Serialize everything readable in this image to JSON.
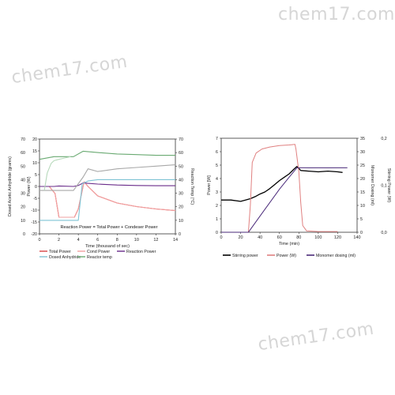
{
  "watermark": {
    "top_right": "chem17.com",
    "middle_left": "chem17.com",
    "lower_right": "chem17.com"
  },
  "chart_data": [
    {
      "type": "line",
      "xlabel": "Time (thousand of sec)",
      "x_ticks": [
        0,
        2,
        4,
        6,
        8,
        10,
        12,
        14
      ],
      "xlim": [
        0,
        14
      ],
      "left_outer_axis": {
        "label": "Dosed Acetic Anhydride (grams)",
        "ticks": [
          0,
          10,
          20,
          30,
          40,
          50,
          60,
          70
        ],
        "ylim": [
          0,
          70
        ]
      },
      "left_inner_axis": {
        "label": "Power (W)",
        "ticks": [
          -20,
          -15,
          -10,
          -5,
          0,
          5,
          10,
          15,
          20
        ],
        "ylim": [
          -20,
          20
        ]
      },
      "right_axis": {
        "label": "Reaction Temp (°C)",
        "ticks": [
          0,
          10,
          20,
          30,
          40,
          50,
          60,
          70
        ],
        "ylim": [
          0,
          70
        ]
      },
      "annotation": "Reaction Power = Total Power + Condeser Power",
      "legend_position": "bottom",
      "series": [
        {
          "name": "Total Power",
          "axis": "power",
          "color": "#d64545",
          "x": [
            0,
            1.0,
            1.6,
            2.0,
            3.6,
            4.0,
            4.6,
            5.0,
            6.0,
            8.0,
            10.0,
            12.0,
            14.0
          ],
          "y": [
            0,
            0,
            -3,
            -13,
            -13,
            -9.5,
            2,
            0,
            -4,
            -7,
            -8.5,
            -9.5,
            -10.2
          ]
        },
        {
          "name": "Cond Power",
          "axis": "power",
          "color": "#f2a0a0",
          "x": [
            0,
            1.0,
            1.6,
            2.0,
            3.6,
            4.0,
            4.6,
            5.0,
            6.0,
            8.0,
            10.0,
            12.0,
            14.0
          ],
          "y": [
            0,
            0,
            -3,
            -13,
            -13,
            -9.5,
            2,
            0,
            -4,
            -7,
            -8.5,
            -9.5,
            -10.2
          ]
        },
        {
          "name": "Reaction Power",
          "axis": "power",
          "color": "#6a2c8a",
          "x": [
            0,
            1.5,
            2.0,
            3.5,
            4.0,
            4.5,
            5.0,
            6.0,
            8.0,
            10.0,
            12.0,
            14.0
          ],
          "y": [
            0,
            0,
            0.2,
            0,
            0.4,
            1.5,
            1.3,
            1.0,
            0.6,
            0.4,
            0.3,
            0.3
          ]
        },
        {
          "name": "Dosed Anhydride",
          "axis": "dosed",
          "color": "#7fc3d4",
          "x": [
            0,
            4.0,
            4.4,
            5.0,
            6.0,
            14.0
          ],
          "y": [
            10,
            10,
            37,
            39,
            40,
            40
          ]
        },
        {
          "name": "Reactor temp",
          "axis": "temp",
          "color": "#6aaa72",
          "x": [
            0,
            1.5,
            3.5,
            4.5,
            6.0,
            8.0,
            10.0,
            12.0,
            14.0
          ],
          "y": [
            55,
            57,
            57,
            61,
            60,
            59,
            58.5,
            58,
            58
          ]
        },
        {
          "name": "",
          "axis": "temp",
          "color": "#a8a8a8",
          "x": [
            0,
            3.5,
            4.5,
            5.0,
            6.0,
            8.0,
            10.0,
            12.0,
            14.0
          ],
          "y": [
            32,
            32,
            42,
            48,
            46,
            48,
            49,
            50,
            51
          ]
        },
        {
          "name": "",
          "axis": "temp",
          "color": "#b7d9bb",
          "x": [
            0.5,
            0.8,
            1.2,
            1.5,
            2.0,
            2.6,
            3.2
          ],
          "y": [
            32,
            45,
            52,
            54,
            55,
            56,
            57
          ]
        }
      ]
    },
    {
      "type": "line",
      "xlabel": "Time (min)",
      "x_ticks": [
        0,
        20,
        40,
        60,
        80,
        100,
        120,
        140
      ],
      "xlim": [
        0,
        140
      ],
      "left_axis": {
        "label": "Power [W]",
        "ticks": [
          0,
          1,
          2,
          3,
          4,
          5,
          6,
          7
        ],
        "ylim": [
          0,
          7
        ]
      },
      "right_axis_1": {
        "label": "Monomer Dosing (ml)",
        "ticks": [
          0,
          5,
          10,
          15,
          20,
          25,
          30,
          35
        ],
        "ylim": [
          0,
          35
        ]
      },
      "right_axis_2": {
        "label": "Stirring Power (W)",
        "ticks": [
          "0,0",
          "0,1",
          "0,2"
        ],
        "ylim": [
          0,
          0.2
        ]
      },
      "legend_position": "bottom",
      "series": [
        {
          "name": "Stirring power",
          "axis": "left",
          "color": "#000000",
          "x": [
            0,
            10,
            20,
            25,
            30,
            35,
            40,
            45,
            50,
            55,
            60,
            65,
            70,
            75,
            78,
            82,
            90,
            100,
            110,
            120,
            125
          ],
          "y": [
            2.4,
            2.4,
            2.3,
            2.4,
            2.5,
            2.65,
            2.85,
            3.0,
            3.25,
            3.55,
            3.85,
            4.1,
            4.35,
            4.7,
            4.9,
            4.6,
            4.55,
            4.5,
            4.55,
            4.5,
            4.45
          ]
        },
        {
          "name": "Power (W)",
          "axis": "left",
          "color": "#e08080",
          "x": [
            0,
            28,
            30,
            32,
            36,
            42,
            50,
            60,
            70,
            76,
            77,
            80,
            82,
            84,
            88,
            100,
            120
          ],
          "y": [
            0,
            0,
            2.0,
            5.2,
            5.9,
            6.2,
            6.35,
            6.45,
            6.5,
            6.55,
            6.2,
            4.5,
            2.2,
            0.5,
            0.1,
            0.05,
            0.05
          ]
        },
        {
          "name": "Monomer dosing (ml)",
          "axis": "right_1",
          "color": "#4a2a7a",
          "x": [
            0,
            28,
            30,
            40,
            50,
            60,
            70,
            78,
            80,
            100,
            120,
            130
          ],
          "y": [
            0,
            0,
            1,
            6,
            11,
            16,
            20.5,
            24,
            24,
            24,
            24,
            24
          ]
        }
      ]
    }
  ]
}
